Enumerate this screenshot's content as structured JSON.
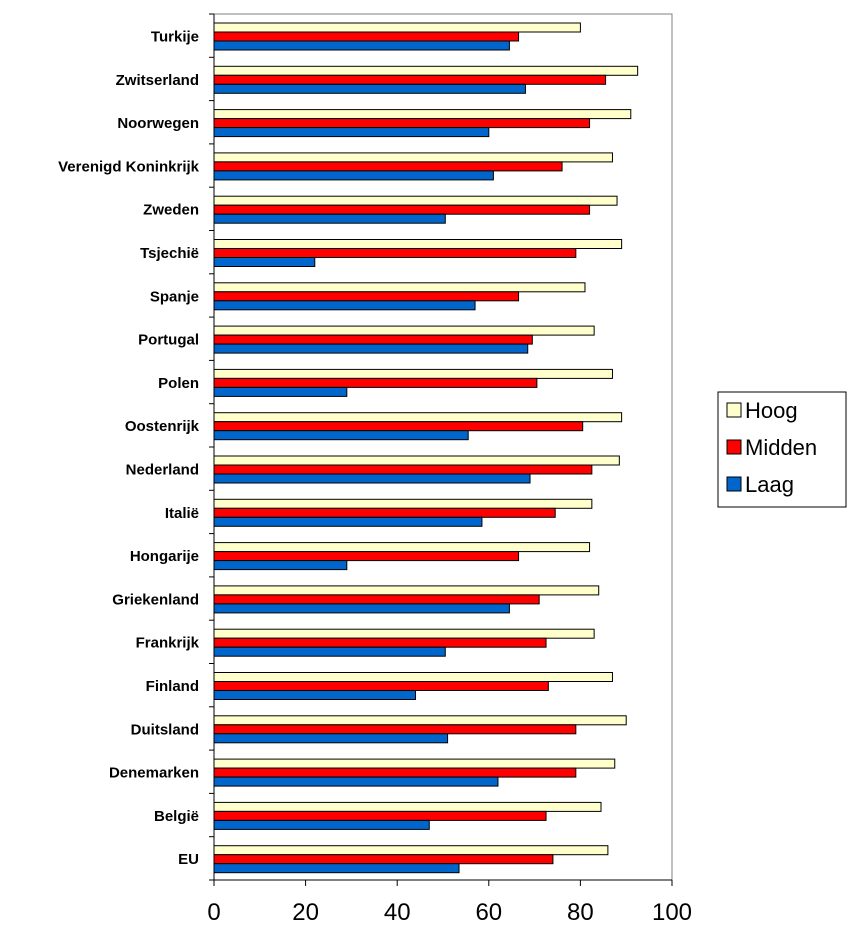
{
  "chart_data": {
    "type": "bar",
    "orientation": "horizontal",
    "categories": [
      "Turkije",
      "Zwitserland",
      "Noorwegen",
      "Verenigd Koninkrijk",
      "Zweden",
      "Tsjechië",
      "Spanje",
      "Portugal",
      "Polen",
      "Oostenrijk",
      "Nederland",
      "Italië",
      "Hongarije",
      "Griekenland",
      "Frankrijk",
      "Finland",
      "Duitsland",
      "Denemarken",
      "België",
      "EU"
    ],
    "series": [
      {
        "name": "Hoog",
        "color": "#ffffcc",
        "values": [
          80,
          92.5,
          91,
          87,
          88,
          89,
          81,
          83,
          87,
          89,
          88.5,
          82.5,
          82,
          84,
          83,
          87,
          90,
          87.5,
          84.5,
          86
        ]
      },
      {
        "name": "Midden",
        "color": "#ff0000",
        "values": [
          66.5,
          85.5,
          82,
          76,
          82,
          79,
          66.5,
          69.5,
          70.5,
          80.5,
          82.5,
          74.5,
          66.5,
          71,
          72.5,
          73,
          79,
          79,
          72.5,
          74
        ]
      },
      {
        "name": "Laag",
        "color": "#0066cc",
        "values": [
          64.5,
          68,
          60,
          61,
          50.5,
          22,
          57,
          68.5,
          29,
          55.5,
          69,
          58.5,
          29,
          64.5,
          50.5,
          44,
          51,
          62,
          47,
          53.5
        ]
      }
    ],
    "xlim": [
      0,
      100
    ],
    "xticks": [
      0,
      20,
      40,
      60,
      80,
      100
    ],
    "legend_position": "right",
    "grid": false
  }
}
